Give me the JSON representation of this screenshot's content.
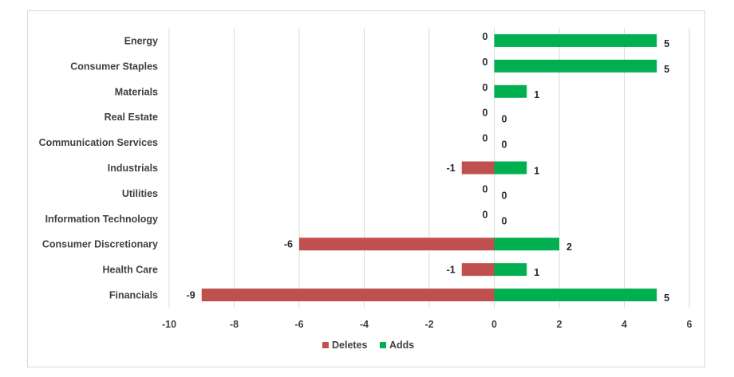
{
  "chart_data": {
    "type": "bar",
    "orientation": "horizontal",
    "categories": [
      "Energy",
      "Consumer Staples",
      "Materials",
      "Real Estate",
      "Communication Services",
      "Industrials",
      "Utilities",
      "Information Technology",
      "Consumer Discretionary",
      "Health Care",
      "Financials"
    ],
    "series": [
      {
        "name": "Deletes",
        "color": "#c0504d",
        "values": [
          0,
          0,
          0,
          0,
          0,
          -1,
          0,
          0,
          -6,
          -1,
          -9
        ],
        "labels": [
          "0",
          "0",
          "0",
          "0",
          "0",
          "-1",
          "0",
          "0",
          "-6",
          "-1",
          "-9"
        ]
      },
      {
        "name": "Adds",
        "color": "#00b050",
        "values": [
          5,
          5,
          1,
          0,
          0,
          1,
          0,
          0,
          2,
          1,
          5
        ],
        "labels": [
          "5",
          "5",
          "1",
          "0",
          "0",
          "1",
          "0",
          "0",
          "2",
          "1",
          "5"
        ]
      }
    ],
    "xlim": [
      -10,
      6
    ],
    "xticks": [
      -10,
      -8,
      -6,
      -4,
      -2,
      0,
      2,
      4,
      6
    ],
    "xtick_labels": [
      "-10",
      "-8",
      "-6",
      "-4",
      "-2",
      "0",
      "2",
      "4",
      "6"
    ],
    "grid": "vertical",
    "legend_position": "bottom",
    "title": "",
    "xlabel": "",
    "ylabel": ""
  }
}
